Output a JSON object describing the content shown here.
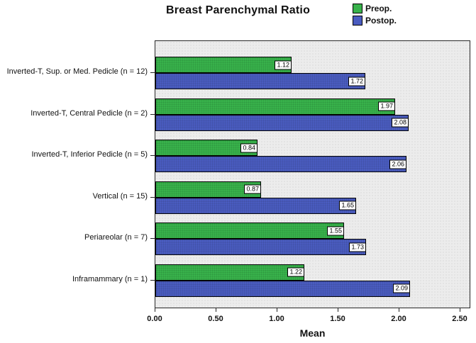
{
  "chart_data": {
    "type": "bar",
    "orientation": "horizontal",
    "title": "Breast Parenchymal Ratio",
    "xlabel": "Mean",
    "categories": [
      "Inverted-T, Sup. or Med. Pedicle (n = 12)",
      "Inverted-T, Central Pedicle (n = 2)",
      "Inverted-T, Inferior Pedicle (n = 5)",
      "Vertical (n = 15)",
      "Periareolar (n = 7)",
      "Inframammary (n = 1)"
    ],
    "series": [
      {
        "name": "Preop.",
        "color": "#38b24b",
        "values": [
          1.12,
          1.97,
          0.84,
          0.87,
          1.55,
          1.22
        ]
      },
      {
        "name": "Postop.",
        "color": "#4a5cc0",
        "values": [
          1.72,
          2.08,
          2.06,
          1.65,
          1.73,
          2.09
        ]
      }
    ],
    "x_ticks": {
      "values": [
        0,
        0.5,
        1.0,
        1.5,
        2.0,
        2.5
      ],
      "labels": [
        "0.00",
        "0.50",
        "1.00",
        "1.50",
        "2.00",
        "2.50"
      ]
    },
    "xlim": [
      0,
      2.59
    ],
    "grid": false,
    "legend_position": "top-right",
    "plot_bg": "#ececec",
    "value_label_decimals": 2
  }
}
